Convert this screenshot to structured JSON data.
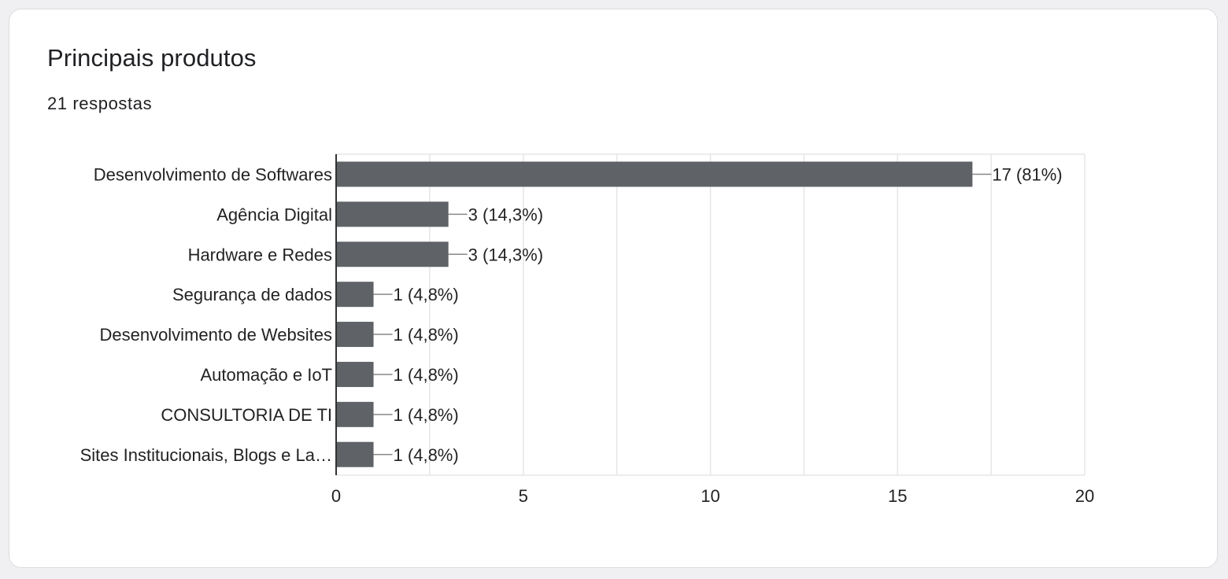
{
  "card": {
    "title": "Principais produtos",
    "subtitle": "21 respostas"
  },
  "colors": {
    "bar": "#5f6368",
    "gridline": "#e6e6e6",
    "axis": "#333333",
    "leader": "#888888",
    "text": "#222222",
    "page_background": "#f0f0f2",
    "card_background": "#ffffff"
  },
  "chart_data": {
    "type": "bar",
    "orientation": "horizontal",
    "title": "",
    "xlabel": "",
    "ylabel": "",
    "categories": [
      "Desenvolvimento de Softwares",
      "Agência Digital",
      "Hardware e Redes",
      "Segurança de dados",
      "Desenvolvimento de Websites",
      "Automação e IoT",
      "CONSULTORIA DE TI",
      "Sites Institucionais, Blogs e La…"
    ],
    "values": [
      17,
      3,
      3,
      1,
      1,
      1,
      1,
      1
    ],
    "data_labels": [
      "17 (81%)",
      "3 (14,3%)",
      "3 (14,3%)",
      "1 (4,8%)",
      "1 (4,8%)",
      "1 (4,8%)",
      "1 (4,8%)",
      "1 (4,8%)"
    ],
    "xlim": [
      0,
      20
    ],
    "xticks": [
      0,
      5,
      10,
      15,
      20
    ],
    "minor_gridlines": true,
    "grid": true,
    "legend": "none"
  }
}
